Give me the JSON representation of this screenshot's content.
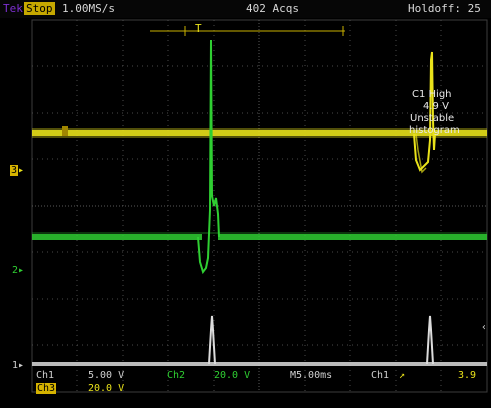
{
  "topbar": {
    "brand": "Tek",
    "run_state": "Stop",
    "sample_rate": "1.00MS/s",
    "acquisitions": "402 Acqs",
    "holdoff": "Holdoff: 25"
  },
  "trigger_window": {
    "label": "T"
  },
  "channel_markers": {
    "ch1": "1",
    "ch2": "2",
    "ch3": "3"
  },
  "trigger_annotation": {
    "line1": "C1 High",
    "line2": "4.9 V",
    "line3": "Unstable",
    "line4": "histogram"
  },
  "readouts": {
    "ch1_label": "Ch1",
    "ch1_scale": "5.00 V",
    "ch2_label": "Ch2",
    "ch2_scale": "20.0 V",
    "timebase": "M5.00ms",
    "trig_source": "Ch1",
    "trig_slope": "↗",
    "trig_level": "3.9",
    "ch3_label": "Ch3",
    "ch3_scale": "20.0 V"
  },
  "colors": {
    "ch1": "#cfcfcf",
    "ch2": "#2fcf32",
    "ch3": "#e9e21a",
    "run_state_bg": "#c6a800",
    "brand": "#7d2fd0",
    "grid": "#4a4a4a"
  }
}
